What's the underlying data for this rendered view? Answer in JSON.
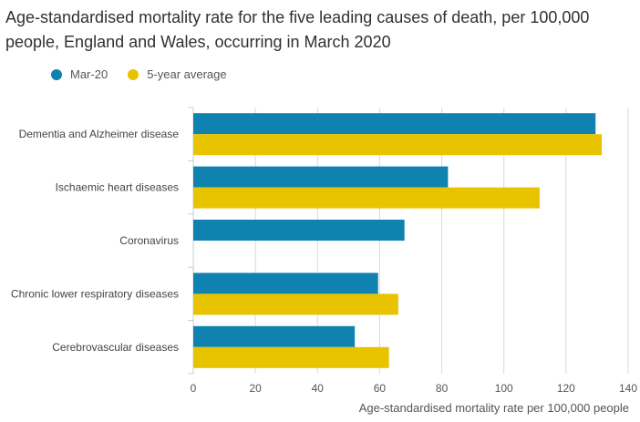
{
  "chart_data": {
    "type": "bar",
    "orientation": "horizontal",
    "title": "Age-standardised mortality rate for the five leading causes of death, per 100,000 people, England and Wales, occurring in March 2020",
    "xlabel": "Age-standardised mortality rate per 100,000 people",
    "ylabel": "",
    "xlim": [
      0,
      140
    ],
    "ticks": [
      0,
      20,
      40,
      60,
      80,
      100,
      120,
      140
    ],
    "tick_labels": [
      "0",
      "20",
      "40",
      "60",
      "80",
      "100",
      "120",
      "140"
    ],
    "legend_position": "top-left",
    "grid": true,
    "categories": [
      "Dementia and Alzheimer disease",
      "Ischaemic heart diseases",
      "Coronavirus",
      "Chronic lower respiratory diseases",
      "Cerebrovascular diseases"
    ],
    "series": [
      {
        "name": "Mar-20",
        "color": "#0f82b0",
        "values": [
          129.5,
          82.0,
          68.0,
          59.5,
          52.0
        ]
      },
      {
        "name": "5-year average",
        "color": "#e8c300",
        "values": [
          131.5,
          111.5,
          null,
          66.0,
          63.0
        ]
      }
    ]
  }
}
